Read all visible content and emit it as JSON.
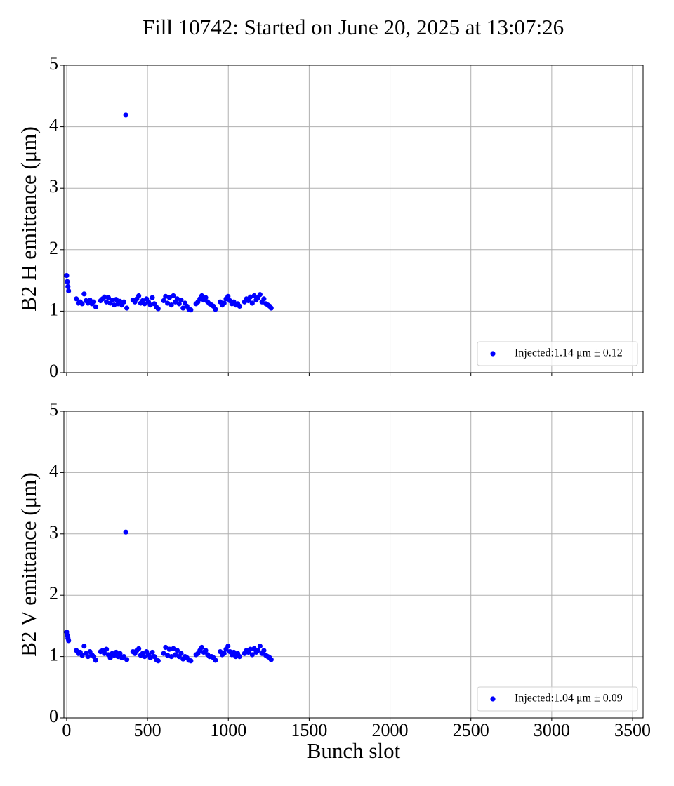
{
  "title": "Fill 10742: Started on June 20, 2025 at 13:07:26",
  "chart_data": [
    {
      "type": "scatter",
      "ylabel": "B2 H emittance (μm)",
      "xlim": [
        -17,
        3565
      ],
      "ylim": [
        0,
        5
      ],
      "xticks": [
        0,
        500,
        1000,
        1500,
        2000,
        2500,
        3000,
        3500
      ],
      "yticks": [
        0,
        1,
        2,
        3,
        4,
        5
      ],
      "grid": true,
      "legend": "lower right",
      "series": [
        {
          "name": "Injected:1.14 μm ± 0.12",
          "color": "#0000ff",
          "x": [
            0,
            4,
            8,
            12,
            60,
            72,
            84,
            96,
            108,
            120,
            132,
            144,
            156,
            168,
            180,
            210,
            222,
            234,
            246,
            258,
            270,
            282,
            294,
            306,
            318,
            330,
            342,
            354,
            366,
            372,
            410,
            422,
            434,
            446,
            458,
            470,
            482,
            494,
            506,
            518,
            530,
            542,
            554,
            566,
            600,
            612,
            624,
            636,
            648,
            660,
            672,
            684,
            696,
            708,
            720,
            732,
            744,
            756,
            768,
            800,
            812,
            824,
            836,
            848,
            860,
            872,
            884,
            896,
            908,
            920,
            950,
            962,
            974,
            986,
            998,
            1010,
            1022,
            1034,
            1046,
            1058,
            1070,
            1100,
            1112,
            1124,
            1136,
            1148,
            1160,
            1172,
            1184,
            1196,
            1208,
            1220,
            1232,
            1244,
            1256,
            1265
          ],
          "values": [
            1.58,
            1.48,
            1.4,
            1.33,
            1.2,
            1.13,
            1.15,
            1.12,
            1.28,
            1.17,
            1.13,
            1.18,
            1.12,
            1.15,
            1.07,
            1.17,
            1.2,
            1.23,
            1.15,
            1.22,
            1.13,
            1.18,
            1.1,
            1.19,
            1.12,
            1.16,
            1.1,
            1.15,
            4.19,
            1.05,
            1.18,
            1.15,
            1.2,
            1.25,
            1.13,
            1.17,
            1.12,
            1.2,
            1.15,
            1.1,
            1.22,
            1.12,
            1.07,
            1.04,
            1.17,
            1.24,
            1.13,
            1.22,
            1.1,
            1.25,
            1.15,
            1.2,
            1.12,
            1.18,
            1.05,
            1.13,
            1.08,
            1.03,
            1.02,
            1.12,
            1.15,
            1.2,
            1.25,
            1.18,
            1.22,
            1.15,
            1.12,
            1.1,
            1.08,
            1.03,
            1.15,
            1.1,
            1.13,
            1.2,
            1.24,
            1.17,
            1.12,
            1.15,
            1.1,
            1.12,
            1.08,
            1.15,
            1.2,
            1.17,
            1.23,
            1.13,
            1.25,
            1.18,
            1.22,
            1.27,
            1.15,
            1.2,
            1.12,
            1.1,
            1.08,
            1.05
          ]
        }
      ]
    },
    {
      "type": "scatter",
      "ylabel": "B2 V emittance (μm)",
      "xlabel": "Bunch slot",
      "xlim": [
        -17,
        3565
      ],
      "ylim": [
        0,
        5
      ],
      "xticks": [
        0,
        500,
        1000,
        1500,
        2000,
        2500,
        3000,
        3500
      ],
      "yticks": [
        0,
        1,
        2,
        3,
        4,
        5
      ],
      "grid": true,
      "legend": "lower right",
      "series": [
        {
          "name": "Injected:1.04 μm ± 0.09",
          "color": "#0000ff",
          "x": [
            0,
            4,
            8,
            12,
            60,
            72,
            84,
            96,
            108,
            120,
            132,
            144,
            156,
            168,
            180,
            210,
            222,
            234,
            246,
            258,
            270,
            282,
            294,
            306,
            318,
            330,
            342,
            354,
            366,
            372,
            410,
            422,
            434,
            446,
            458,
            470,
            482,
            494,
            506,
            518,
            530,
            542,
            554,
            566,
            600,
            612,
            624,
            636,
            648,
            660,
            672,
            684,
            696,
            708,
            720,
            732,
            744,
            756,
            768,
            800,
            812,
            824,
            836,
            848,
            860,
            872,
            884,
            896,
            908,
            920,
            950,
            962,
            974,
            986,
            998,
            1010,
            1022,
            1034,
            1046,
            1058,
            1070,
            1100,
            1112,
            1124,
            1136,
            1148,
            1160,
            1172,
            1184,
            1196,
            1208,
            1220,
            1232,
            1244,
            1256,
            1265
          ],
          "values": [
            1.4,
            1.35,
            1.3,
            1.26,
            1.1,
            1.05,
            1.07,
            1.02,
            1.17,
            1.05,
            1.0,
            1.08,
            1.03,
            1.0,
            0.94,
            1.08,
            1.1,
            1.05,
            1.12,
            1.03,
            0.98,
            1.05,
            1.02,
            1.07,
            1.0,
            1.05,
            0.98,
            1.0,
            3.03,
            0.95,
            1.08,
            1.05,
            1.1,
            1.13,
            1.02,
            1.05,
            1.0,
            1.08,
            1.03,
            0.98,
            1.07,
            1.0,
            0.95,
            0.93,
            1.05,
            1.15,
            1.02,
            1.12,
            1.0,
            1.13,
            1.03,
            1.1,
            1.0,
            1.05,
            0.96,
            1.0,
            0.98,
            0.94,
            0.93,
            1.03,
            1.05,
            1.1,
            1.15,
            1.07,
            1.1,
            1.03,
            1.0,
            1.0,
            0.98,
            0.94,
            1.08,
            1.03,
            1.05,
            1.12,
            1.17,
            1.08,
            1.03,
            1.07,
            1.0,
            1.05,
            1.0,
            1.05,
            1.1,
            1.07,
            1.12,
            1.03,
            1.13,
            1.07,
            1.1,
            1.17,
            1.05,
            1.1,
            1.02,
            1.0,
            0.98,
            0.95
          ]
        }
      ]
    }
  ]
}
